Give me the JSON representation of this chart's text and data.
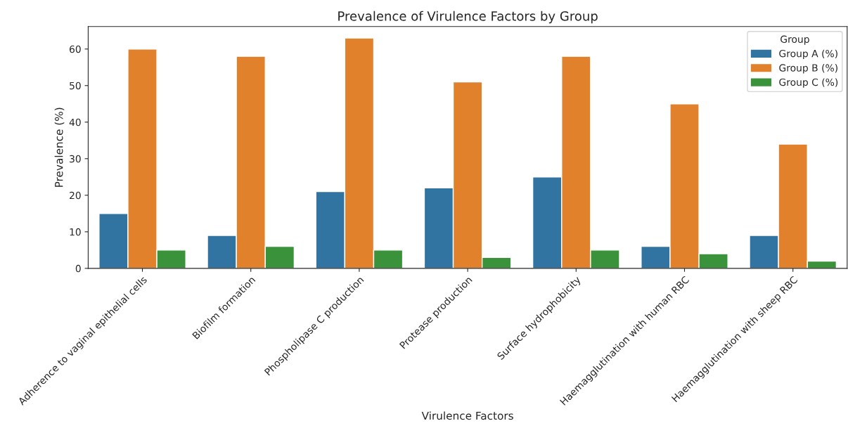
{
  "chart_data": {
    "type": "bar",
    "title": "Prevalence of Virulence Factors by Group",
    "xlabel": "Virulence Factors",
    "ylabel": "Prevalence (%)",
    "legend_title": "Group",
    "categories": [
      "Adherence to vaginal epithelial cells",
      "Biofilm formation",
      "Phospholipase C production",
      "Protease production",
      "Surface hydrophobicity",
      "Haemagglutination with human RBC",
      "Haemagglutination with sheep RBC"
    ],
    "series": [
      {
        "name": "Group A (%)",
        "color": "#3274a1",
        "values": [
          15,
          9,
          21,
          22,
          25,
          6,
          9
        ]
      },
      {
        "name": "Group B (%)",
        "color": "#e1812c",
        "values": [
          60,
          58,
          63,
          51,
          58,
          45,
          34
        ]
      },
      {
        "name": "Group C (%)",
        "color": "#3a923a",
        "values": [
          5,
          6,
          5,
          3,
          5,
          4,
          2
        ]
      }
    ],
    "ylim": [
      0,
      66.15
    ],
    "yticks": [
      0,
      10,
      20,
      30,
      40,
      50,
      60
    ],
    "grid": false,
    "legend": "top right"
  }
}
